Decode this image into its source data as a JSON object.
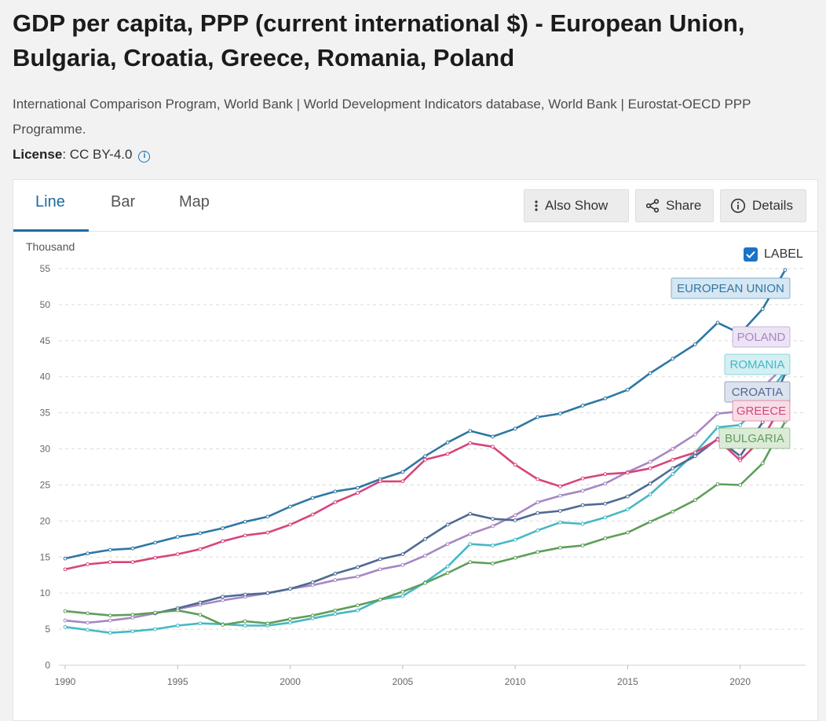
{
  "page": {
    "title": "GDP per capita, PPP (current international $) - European Union, Bulgaria, Croatia, Greece, Romania, Poland",
    "source": "International Comparison Program, World Bank | World Development Indicators database, World Bank | Eurostat-OECD PPP Programme.",
    "license_label": "License",
    "license_value": ": CC BY-4.0"
  },
  "tabs": [
    {
      "label": "Line"
    },
    {
      "label": "Bar"
    },
    {
      "label": "Map"
    }
  ],
  "actions": {
    "also_show": "Also Show",
    "share": "Share",
    "details": "Details"
  },
  "label_toggle": {
    "text": "LABEL",
    "checked": true
  },
  "icons": {
    "info": "info-icon",
    "kebab": "vertical-dots-icon",
    "share": "share-icon",
    "details": "info-circle-icon",
    "checkbox": "checkmark-icon"
  },
  "chart_data": {
    "type": "line",
    "ylabel": "Thousand",
    "ylim": [
      0,
      55
    ],
    "yticks": [
      0,
      5,
      10,
      15,
      20,
      25,
      30,
      35,
      40,
      45,
      50,
      55
    ],
    "xlim": [
      1990,
      2022
    ],
    "xticks": [
      1990,
      1995,
      2000,
      2005,
      2010,
      2015,
      2020
    ],
    "grid": true,
    "legend": "labels at line ends (right)",
    "x": [
      1990,
      1991,
      1992,
      1993,
      1994,
      1995,
      1996,
      1997,
      1998,
      1999,
      2000,
      2001,
      2002,
      2003,
      2004,
      2005,
      2006,
      2007,
      2008,
      2009,
      2010,
      2011,
      2012,
      2013,
      2014,
      2015,
      2016,
      2017,
      2018,
      2019,
      2020,
      2021,
      2022
    ],
    "series": [
      {
        "name": "EUROPEAN UNION",
        "color": "#2e77a3",
        "label_bg": "#d6e6f3",
        "values": [
          14.8,
          15.5,
          16.0,
          16.2,
          17.0,
          17.8,
          18.3,
          19.0,
          19.9,
          20.6,
          22.0,
          23.2,
          24.1,
          24.6,
          25.8,
          26.8,
          29.0,
          30.9,
          32.5,
          31.7,
          32.8,
          34.4,
          34.9,
          36.0,
          37.0,
          38.2,
          40.5,
          42.5,
          44.5,
          47.5,
          46.0,
          49.4,
          54.8
        ]
      },
      {
        "name": "POLAND",
        "color": "#a687c4",
        "label_bg": "#ece3f4",
        "values": [
          6.2,
          5.9,
          6.2,
          6.6,
          7.2,
          7.8,
          8.4,
          9.0,
          9.5,
          10.0,
          10.6,
          11.1,
          11.8,
          12.3,
          13.3,
          13.9,
          15.2,
          16.8,
          18.2,
          19.3,
          20.8,
          22.6,
          23.5,
          24.2,
          25.2,
          26.8,
          28.2,
          30.0,
          32.0,
          34.9,
          35.2,
          38.5,
          41.6
        ]
      },
      {
        "name": "ROMANIA",
        "color": "#46b8c4",
        "label_bg": "#d4eff2",
        "values": [
          5.3,
          4.9,
          4.5,
          4.7,
          5.0,
          5.5,
          5.8,
          5.7,
          5.5,
          5.5,
          5.9,
          6.5,
          7.1,
          7.6,
          9.1,
          9.6,
          11.5,
          13.7,
          16.8,
          16.6,
          17.4,
          18.7,
          19.8,
          19.6,
          20.5,
          21.6,
          23.7,
          26.5,
          29.5,
          33.0,
          33.3,
          36.5,
          40.8
        ]
      },
      {
        "name": "CROATIA",
        "color": "#4e6a93",
        "label_bg": "#dde3ee",
        "values": [
          null,
          null,
          null,
          null,
          7.2,
          7.9,
          8.7,
          9.5,
          9.8,
          10.0,
          10.6,
          11.5,
          12.7,
          13.6,
          14.7,
          15.4,
          17.5,
          19.5,
          21.0,
          20.3,
          20.1,
          21.1,
          21.4,
          22.2,
          22.4,
          23.4,
          25.2,
          27.3,
          29.0,
          31.4,
          29.0,
          33.7,
          40.4
        ]
      },
      {
        "name": "GREECE",
        "color": "#d6457c",
        "label_bg": "#f7dde7",
        "values": [
          13.3,
          14.0,
          14.3,
          14.3,
          14.9,
          15.4,
          16.1,
          17.2,
          18.0,
          18.4,
          19.5,
          20.9,
          22.6,
          23.9,
          25.5,
          25.5,
          28.5,
          29.3,
          30.8,
          30.3,
          27.8,
          25.8,
          24.8,
          25.9,
          26.5,
          26.7,
          27.3,
          28.5,
          29.5,
          31.3,
          28.4,
          31.5,
          36.8
        ]
      },
      {
        "name": "BULGARIA",
        "color": "#5e9e5a",
        "label_bg": "#dcebd8",
        "values": [
          7.5,
          7.2,
          6.9,
          7.0,
          7.3,
          7.6,
          7.0,
          5.6,
          6.1,
          5.8,
          6.4,
          6.9,
          7.6,
          8.3,
          9.1,
          10.2,
          11.4,
          12.8,
          14.3,
          14.1,
          14.9,
          15.7,
          16.3,
          16.6,
          17.6,
          18.4,
          19.9,
          21.3,
          22.9,
          25.1,
          25.0,
          28.0,
          33.8
        ]
      }
    ]
  }
}
